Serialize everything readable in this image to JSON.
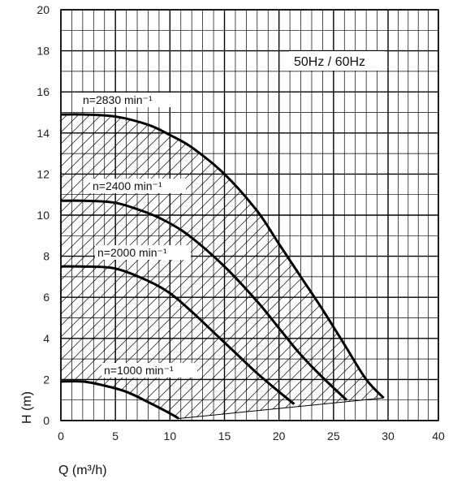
{
  "chart_data": {
    "type": "line",
    "xlabel": "Q (m³/h)",
    "ylabel": "H (m)",
    "xlim": [
      0,
      40
    ],
    "ylim": [
      0,
      20
    ],
    "x_ticks": [
      "0",
      "5",
      "10",
      "15",
      "20",
      "25",
      "30",
      "40"
    ],
    "x_tick_values": [
      0,
      5,
      10,
      15,
      20,
      25,
      30,
      40
    ],
    "y_ticks": [
      "0",
      "2",
      "4",
      "6",
      "8",
      "10",
      "12",
      "14",
      "16",
      "18",
      "20"
    ],
    "y_tick_values": [
      0,
      2,
      4,
      6,
      8,
      10,
      12,
      14,
      16,
      18,
      20
    ],
    "grid": true,
    "frequency_label": "50Hz / 60Hz",
    "series": [
      {
        "name": "n=2830 min⁻¹",
        "x": [
          0,
          2,
          5,
          8,
          10,
          12,
          15,
          18,
          20,
          22,
          24,
          26,
          28,
          29.6
        ],
        "y": [
          14.9,
          14.9,
          14.8,
          14.4,
          13.9,
          13.3,
          12.0,
          10.2,
          8.6,
          7.0,
          5.4,
          3.7,
          2.0,
          1.1
        ]
      },
      {
        "name": "n=2400 min⁻¹",
        "x": [
          0,
          2,
          5,
          8,
          10,
          12,
          15,
          18,
          20,
          22,
          24,
          26.2
        ],
        "y": [
          10.7,
          10.7,
          10.6,
          10.1,
          9.6,
          8.9,
          7.5,
          5.8,
          4.5,
          3.2,
          2.1,
          1.0
        ]
      },
      {
        "name": "n=2000 min⁻¹",
        "x": [
          0,
          2,
          5,
          8,
          10,
          12,
          14,
          16,
          18,
          20,
          21.4
        ],
        "y": [
          7.5,
          7.5,
          7.4,
          6.8,
          6.2,
          5.3,
          4.3,
          3.3,
          2.3,
          1.4,
          0.8
        ]
      },
      {
        "name": "n=1000 min⁻¹",
        "x": [
          0,
          2,
          4,
          6,
          8,
          10,
          10.8
        ],
        "y": [
          1.9,
          1.9,
          1.7,
          1.4,
          0.9,
          0.35,
          0.1
        ]
      }
    ],
    "hatched_region": "operating range between n=1000 min⁻¹ and n=2830 min⁻¹ curves"
  }
}
